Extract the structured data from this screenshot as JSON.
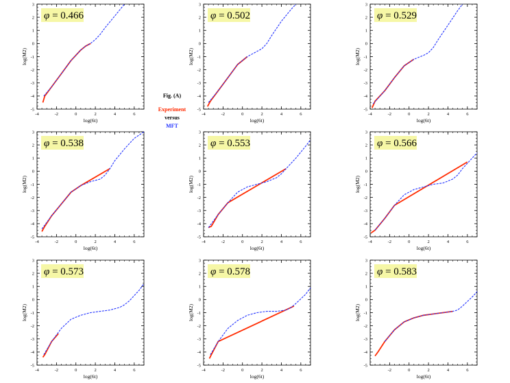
{
  "figure": {
    "caption": {
      "title": "Fig. (A)",
      "experiment": "Experiment",
      "versus": "versus",
      "mft": "MFT"
    },
    "colors": {
      "experiment": "#ff2a00",
      "mft": "#2233ff",
      "phi_box": "#f6f7a6"
    }
  },
  "chart_data": [
    {
      "type": "line",
      "phi_label": "0.466",
      "xlabel": "log(6t)",
      "ylabel": "log(M2)",
      "xlim": [
        -4,
        7
      ],
      "ylim": [
        -5,
        3
      ],
      "xticks": [
        "-4",
        "-2",
        "0",
        "2",
        "4",
        "6"
      ],
      "yticks": [
        "-5",
        "-4",
        "-3",
        "-2",
        "-1",
        "0",
        "1",
        "2",
        "3"
      ],
      "series": [
        {
          "role": "mft",
          "x": [
            -3.3,
            -2.5,
            -1.5,
            -0.5,
            0.5,
            1.0,
            1.5,
            2.0,
            2.5,
            3.0,
            4.0,
            5.0
          ],
          "y": [
            -4.0,
            -3.3,
            -2.3,
            -1.3,
            -0.5,
            -0.2,
            0.0,
            0.3,
            0.7,
            1.2,
            2.1,
            3.0
          ]
        },
        {
          "role": "experiment",
          "x": [
            -3.4,
            -3.2,
            -2.5,
            -1.5,
            -0.5,
            0.5,
            1.0,
            1.5
          ],
          "y": [
            -4.5,
            -4.0,
            -3.3,
            -2.3,
            -1.3,
            -0.5,
            -0.2,
            0.0
          ]
        }
      ]
    },
    {
      "type": "line",
      "phi_label": "0.502",
      "xlabel": "log(6t)",
      "ylabel": "log(M2)",
      "xlim": [
        -4,
        7
      ],
      "ylim": [
        -5,
        3
      ],
      "xticks": [
        "-4",
        "-2",
        "0",
        "2",
        "4",
        "6"
      ],
      "yticks": [
        "-5",
        "-4",
        "-3",
        "-2",
        "-1",
        "0",
        "1",
        "2",
        "3"
      ],
      "series": [
        {
          "role": "mft",
          "x": [
            -3.5,
            -2.5,
            -1.5,
            -0.5,
            0.5,
            1.0,
            1.5,
            2.0,
            2.5,
            3.0,
            4.0,
            5.0,
            5.5
          ],
          "y": [
            -4.5,
            -3.6,
            -2.6,
            -1.6,
            -1.0,
            -0.8,
            -0.6,
            -0.4,
            0.0,
            0.6,
            1.7,
            2.6,
            3.0
          ]
        },
        {
          "role": "experiment",
          "x": [
            -3.6,
            -3.3,
            -2.5,
            -1.5,
            -0.5,
            0.5
          ],
          "y": [
            -4.8,
            -4.4,
            -3.6,
            -2.6,
            -1.6,
            -1.0
          ]
        }
      ]
    },
    {
      "type": "line",
      "phi_label": "0.529",
      "xlabel": "log(6t)",
      "ylabel": "log(M2)",
      "xlim": [
        -4,
        7
      ],
      "ylim": [
        -5,
        3
      ],
      "xticks": [
        "-4",
        "-2",
        "0",
        "2",
        "4",
        "6"
      ],
      "yticks": [
        "-5",
        "-4",
        "-3",
        "-2",
        "-1",
        "0",
        "1",
        "2",
        "3"
      ],
      "series": [
        {
          "role": "mft",
          "x": [
            -3.7,
            -2.5,
            -1.5,
            -0.5,
            0.5,
            1.5,
            2.0,
            2.5,
            3.0,
            4.0,
            5.0,
            5.5
          ],
          "y": [
            -4.6,
            -3.6,
            -2.6,
            -1.7,
            -1.2,
            -0.9,
            -0.7,
            -0.3,
            0.3,
            1.4,
            2.5,
            3.0
          ]
        },
        {
          "role": "experiment",
          "x": [
            -3.8,
            -3.5,
            -2.5,
            -1.5,
            -0.5,
            0.5
          ],
          "y": [
            -4.9,
            -4.4,
            -3.6,
            -2.6,
            -1.7,
            -1.2
          ]
        }
      ]
    },
    {
      "type": "line",
      "phi_label": "0.538",
      "xlabel": "log(6t)",
      "ylabel": "log(M2)",
      "xlim": [
        -4,
        7
      ],
      "ylim": [
        -5,
        3
      ],
      "xticks": [
        "-4",
        "-2",
        "0",
        "2",
        "4",
        "6"
      ],
      "yticks": [
        "-5",
        "-4",
        "-3",
        "-2",
        "-1",
        "0",
        "1",
        "2",
        "3"
      ],
      "series": [
        {
          "role": "mft",
          "x": [
            -3.5,
            -2.5,
            -1.5,
            -0.5,
            0.5,
            1.5,
            2.5,
            3.0,
            3.5,
            4.0,
            5.0,
            6.0,
            7.0
          ],
          "y": [
            -4.4,
            -3.4,
            -2.5,
            -1.6,
            -1.1,
            -0.8,
            -0.6,
            -0.3,
            0.2,
            0.8,
            1.7,
            2.5,
            3.0
          ]
        },
        {
          "role": "experiment",
          "x": [
            -3.5,
            -3.2,
            -2.5,
            -1.5,
            -0.5,
            0.5,
            3.5
          ],
          "y": [
            -4.6,
            -4.2,
            -3.4,
            -2.5,
            -1.6,
            -1.1,
            0.2
          ]
        }
      ]
    },
    {
      "type": "line",
      "phi_label": "0.553",
      "xlabel": "log(6t)",
      "ylabel": "log(M2)",
      "xlim": [
        -4,
        7
      ],
      "ylim": [
        -5,
        3
      ],
      "xticks": [
        "-4",
        "-2",
        "0",
        "2",
        "4",
        "6"
      ],
      "yticks": [
        "-5",
        "-4",
        "-3",
        "-2",
        "-1",
        "0",
        "1",
        "2",
        "3"
      ],
      "series": [
        {
          "role": "mft",
          "x": [
            -3.5,
            -2.5,
            -1.5,
            -0.5,
            0.5,
            1.5,
            2.5,
            3.5,
            4.0,
            4.5,
            5.5,
            6.5,
            7.0
          ],
          "y": [
            -4.3,
            -3.3,
            -2.4,
            -1.6,
            -1.2,
            -1.0,
            -0.8,
            -0.5,
            -0.2,
            0.2,
            1.0,
            1.9,
            2.4
          ]
        },
        {
          "role": "experiment",
          "x": [
            -3.5,
            -3.2,
            -2.5,
            -1.5,
            4.5
          ],
          "y": [
            -4.3,
            -4.2,
            -3.3,
            -2.4,
            0.2
          ]
        }
      ]
    },
    {
      "type": "line",
      "phi_label": "0.566",
      "xlabel": "log(6t)",
      "ylabel": "log(M2)",
      "xlim": [
        -4,
        7
      ],
      "ylim": [
        -5,
        3
      ],
      "xticks": [
        "-4",
        "-2",
        "0",
        "2",
        "4",
        "6"
      ],
      "yticks": [
        "-5",
        "-4",
        "-3",
        "-2",
        "-1",
        "0",
        "1",
        "2",
        "3"
      ],
      "series": [
        {
          "role": "mft",
          "x": [
            -3.5,
            -2.5,
            -1.5,
            -0.5,
            0.5,
            1.5,
            2.5,
            3.5,
            4.5,
            5.0,
            5.5,
            6.5,
            7.0
          ],
          "y": [
            -4.5,
            -3.6,
            -2.6,
            -1.8,
            -1.4,
            -1.2,
            -1.0,
            -0.9,
            -0.6,
            -0.3,
            0.2,
            1.0,
            1.4
          ]
        },
        {
          "role": "experiment",
          "x": [
            -3.9,
            -3.5,
            -2.5,
            -1.5,
            6.0
          ],
          "y": [
            -4.7,
            -4.5,
            -3.6,
            -2.6,
            0.7
          ]
        }
      ]
    },
    {
      "type": "line",
      "phi_label": "0.573",
      "xlabel": "log(6t)",
      "ylabel": "log(M2)",
      "xlim": [
        -4,
        7
      ],
      "ylim": [
        -5,
        3
      ],
      "xticks": [
        "-4",
        "-2",
        "0",
        "2",
        "4",
        "6"
      ],
      "yticks": [
        "-5",
        "-4",
        "-3",
        "-2",
        "-1",
        "0",
        "1",
        "2",
        "3"
      ],
      "series": [
        {
          "role": "mft",
          "x": [
            -3.3,
            -2.5,
            -1.5,
            -0.5,
            0.5,
            1.5,
            2.5,
            3.5,
            4.5,
            5.0,
            5.5,
            6.5,
            7.0
          ],
          "y": [
            -4.2,
            -3.2,
            -2.2,
            -1.5,
            -1.2,
            -1.0,
            -0.9,
            -0.8,
            -0.6,
            -0.4,
            -0.1,
            0.7,
            1.2
          ]
        },
        {
          "role": "experiment",
          "x": [
            -3.4,
            -3.2,
            -2.5,
            -1.8
          ],
          "y": [
            -4.4,
            -4.2,
            -3.2,
            -2.6
          ]
        }
      ]
    },
    {
      "type": "line",
      "phi_label": "0.578",
      "xlabel": "log(6t)",
      "ylabel": "log(M2)",
      "xlim": [
        -4,
        7
      ],
      "ylim": [
        -5,
        3
      ],
      "xticks": [
        "-4",
        "-2",
        "0",
        "2",
        "4",
        "6"
      ],
      "yticks": [
        "-5",
        "-4",
        "-3",
        "-2",
        "-1",
        "0",
        "1",
        "2",
        "3"
      ],
      "series": [
        {
          "role": "mft",
          "x": [
            -3.3,
            -2.5,
            -1.5,
            -0.5,
            0.5,
            1.5,
            2.5,
            3.5,
            4.5,
            5.0,
            5.5,
            6.5,
            7.0
          ],
          "y": [
            -4.2,
            -3.2,
            -2.2,
            -1.6,
            -1.2,
            -1.0,
            -0.9,
            -0.9,
            -0.8,
            -0.6,
            -0.3,
            0.4,
            0.9
          ]
        },
        {
          "role": "experiment",
          "x": [
            -3.4,
            -3.2,
            -2.5,
            5.3
          ],
          "y": [
            -4.5,
            -4.2,
            -3.2,
            -0.5
          ]
        }
      ]
    },
    {
      "type": "line",
      "phi_label": "0.583",
      "xlabel": "log(6t)",
      "ylabel": "log(M2)",
      "xlim": [
        -4,
        7
      ],
      "ylim": [
        -5,
        3
      ],
      "xticks": [
        "-2",
        "0",
        "2",
        "4",
        "6"
      ],
      "yticks": [
        "-5",
        "-4",
        "-3",
        "-2",
        "-1",
        "0",
        "1",
        "2",
        "3"
      ],
      "series": [
        {
          "role": "mft",
          "x": [
            -2.5,
            -1.5,
            -0.5,
            0.5,
            1.5,
            2.5,
            3.5,
            4.5,
            5.0,
            5.5,
            6.5,
            7.0
          ],
          "y": [
            -3.2,
            -2.3,
            -1.7,
            -1.4,
            -1.2,
            -1.1,
            -1.0,
            -0.9,
            -0.8,
            -0.5,
            0.2,
            0.6
          ]
        },
        {
          "role": "experiment",
          "x": [
            -3.5,
            -3.2,
            -2.5,
            -1.5,
            -0.5,
            0.5,
            1.5,
            2.5,
            3.5,
            4.5
          ],
          "y": [
            -4.3,
            -4.0,
            -3.2,
            -2.3,
            -1.7,
            -1.4,
            -1.2,
            -1.1,
            -1.0,
            -0.9
          ]
        }
      ]
    }
  ]
}
